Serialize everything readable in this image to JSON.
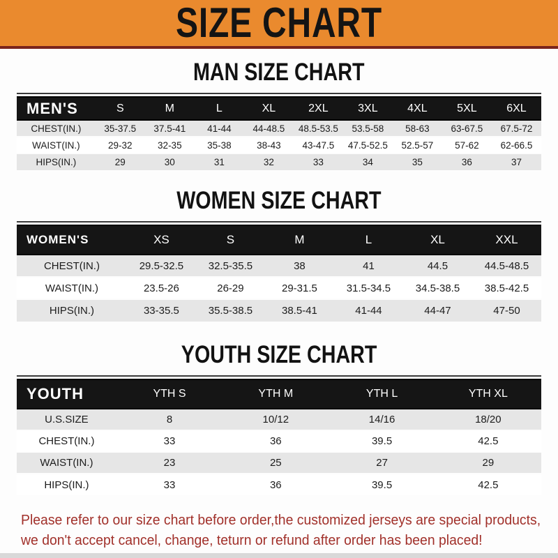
{
  "banner": {
    "title": "SIZE CHART"
  },
  "sections": [
    {
      "id": "men",
      "title": "MAN SIZE CHART",
      "header": [
        "MEN'S",
        "S",
        "M",
        "L",
        "XL",
        "2XL",
        "3XL",
        "4XL",
        "5XL",
        "6XL"
      ],
      "rows": [
        [
          "CHEST(IN.)",
          "35-37.5",
          "37.5-41",
          "41-44",
          "44-48.5",
          "48.5-53.5",
          "53.5-58",
          "58-63",
          "63-67.5",
          "67.5-72"
        ],
        [
          "WAIST(IN.)",
          "29-32",
          "32-35",
          "35-38",
          "38-43",
          "43-47.5",
          "47.5-52.5",
          "52.5-57",
          "57-62",
          "62-66.5"
        ],
        [
          "HIPS(IN.)",
          "29",
          "30",
          "31",
          "32",
          "33",
          "34",
          "35",
          "36",
          "37"
        ]
      ]
    },
    {
      "id": "women",
      "title": "WOMEN SIZE CHART",
      "header": [
        "WOMEN'S",
        "XS",
        "S",
        "M",
        "L",
        "XL",
        "XXL"
      ],
      "rows": [
        [
          "CHEST(IN.)",
          "29.5-32.5",
          "32.5-35.5",
          "38",
          "41",
          "44.5",
          "44.5-48.5"
        ],
        [
          "WAIST(IN.)",
          "23.5-26",
          "26-29",
          "29-31.5",
          "31.5-34.5",
          "34.5-38.5",
          "38.5-42.5"
        ],
        [
          "HIPS(IN.)",
          "33-35.5",
          "35.5-38.5",
          "38.5-41",
          "41-44",
          "44-47",
          "47-50"
        ]
      ]
    },
    {
      "id": "youth",
      "title": "YOUTH SIZE CHART",
      "header": [
        "YOUTH",
        "YTH S",
        "YTH M",
        "YTH L",
        "YTH XL"
      ],
      "rows": [
        [
          "U.S.SIZE",
          "8",
          "10/12",
          "14/16",
          "18/20"
        ],
        [
          "CHEST(IN.)",
          "33",
          "36",
          "39.5",
          "42.5"
        ],
        [
          "WAIST(IN.)",
          "23",
          "25",
          "27",
          "29"
        ],
        [
          "HIPS(IN.)",
          "33",
          "36",
          "39.5",
          "42.5"
        ]
      ]
    }
  ],
  "footer": {
    "line1": "Please refer to our size chart before order,the customized jerseys are special products,",
    "line2": "we don't accept cancel, change, teturn or refund after order has been placed!"
  },
  "colors": {
    "banner_orange": "#EA8A2E",
    "banner_border_maroon": "#7A241C",
    "table_header_black": "#151515",
    "row_gray": "#E6E6E6",
    "footer_red": "#A1302A"
  }
}
